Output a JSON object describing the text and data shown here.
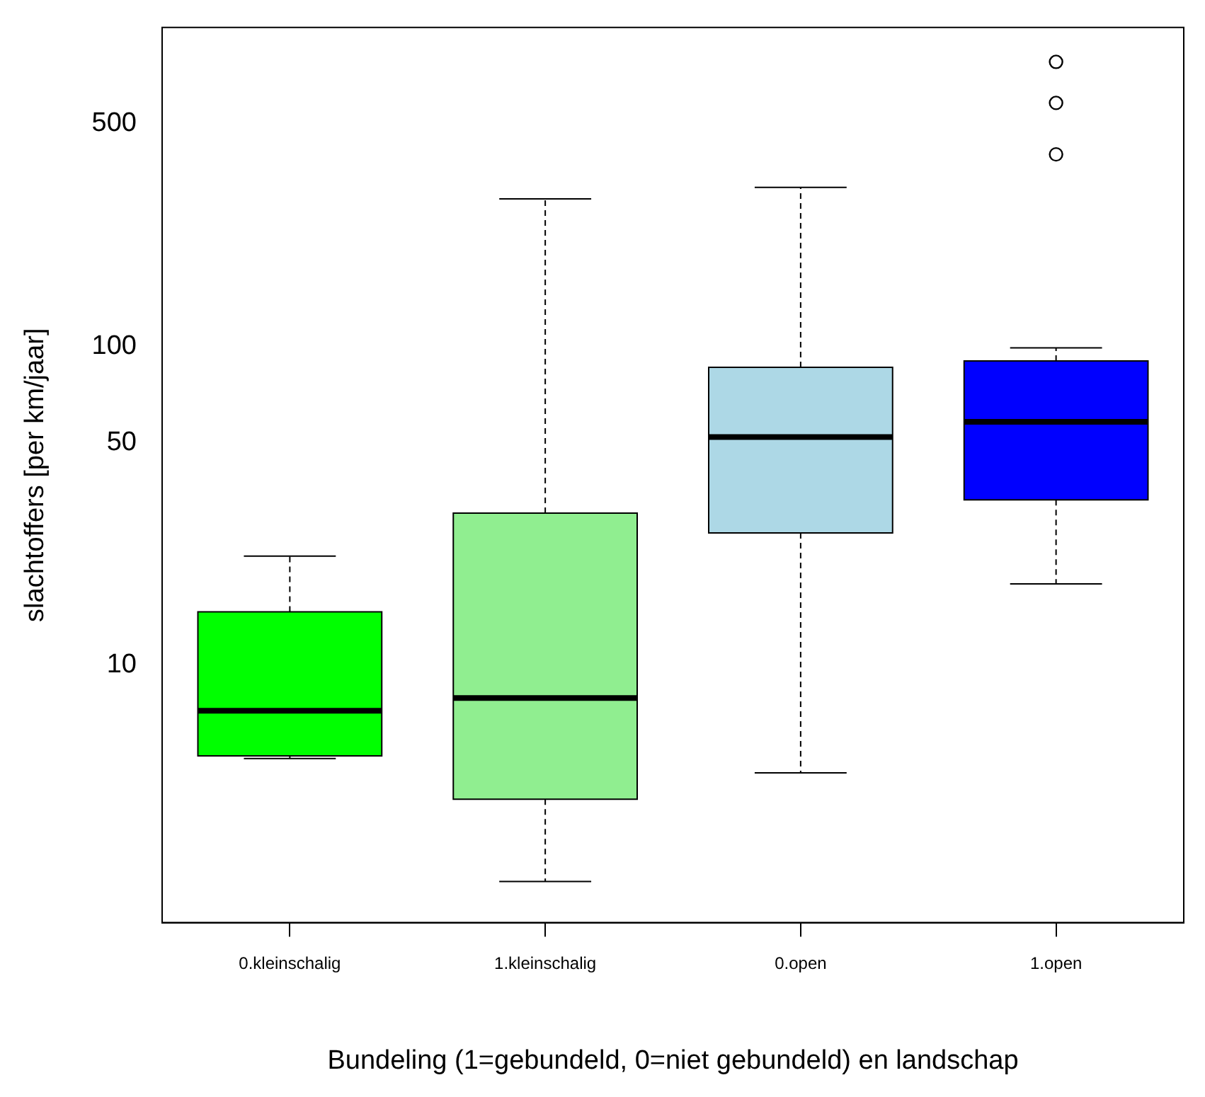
{
  "chart_data": {
    "type": "box",
    "xlabel": "Bundeling (1=gebundeld, 0=niet gebundeld) en landschap",
    "ylabel": "slachtoffers [per km/jaar]",
    "categories": [
      "0.kleinschalig",
      "1.kleinschalig",
      "0.open",
      "1.open"
    ],
    "colors": [
      "#00ff00",
      "#90ee90",
      "#add8e6",
      "#0000ff"
    ],
    "boxes": [
      {
        "low": 5.1,
        "q1": 5.2,
        "median": 7.2,
        "q3": 14.7,
        "high": 22
      },
      {
        "low": 2.1,
        "q1": 3.8,
        "median": 7.9,
        "q3": 30,
        "high": 290
      },
      {
        "low": 4.6,
        "q1": 26,
        "median": 52,
        "q3": 86,
        "high": 315
      },
      {
        "low": 18,
        "q1": 33,
        "median": 58,
        "q3": 90,
        "high": 99,
        "outliers": [
          400,
          580,
          780
        ]
      }
    ],
    "log": true,
    "ylim": [
      1.56,
      1000
    ],
    "yticks": [
      10,
      50,
      100,
      500
    ]
  }
}
